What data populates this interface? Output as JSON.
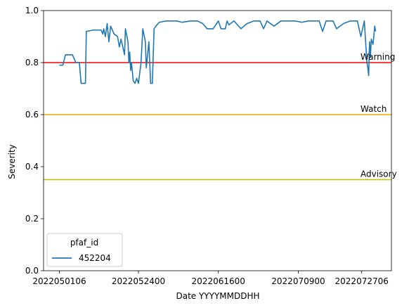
{
  "chart_data": {
    "type": "line",
    "title": "",
    "xlabel": "Date YYYYMMDDHH",
    "ylabel": "Severity",
    "ylim": [
      0,
      1
    ],
    "yticks": [
      "0.0",
      "0.2",
      "0.4",
      "0.6",
      "0.8",
      "1.0"
    ],
    "xticks": [
      "2022050106",
      "2022052400",
      "2022061600",
      "2022070900",
      "2022072706"
    ],
    "grid": false,
    "legend": {
      "title": "pfaf_id",
      "placement": "lower-left"
    },
    "thresholds": [
      {
        "label": "Warning",
        "value": 0.8,
        "color": "#ff0000"
      },
      {
        "label": "Watch",
        "value": 0.6,
        "color": "#ffa500"
      },
      {
        "label": "Advisory",
        "value": 0.35,
        "color": "#bfbf00"
      }
    ],
    "series": [
      {
        "name": "452204",
        "color": "#1f77b4",
        "points": [
          [
            "2022050106",
            0.79
          ],
          [
            "2022050206",
            0.79
          ],
          [
            "2022050300",
            0.83
          ],
          [
            "2022050500",
            0.83
          ],
          [
            "2022050600",
            0.8
          ],
          [
            "2022050700",
            0.8
          ],
          [
            "2022050712",
            0.72
          ],
          [
            "2022050818",
            0.72
          ],
          [
            "2022050900",
            0.92
          ],
          [
            "2022051100",
            0.925
          ],
          [
            "2022051306",
            0.925
          ],
          [
            "2022051318",
            0.91
          ],
          [
            "2022051400",
            0.93
          ],
          [
            "2022051412",
            0.9
          ],
          [
            "2022051500",
            0.95
          ],
          [
            "2022051512",
            0.88
          ],
          [
            "2022051600",
            0.94
          ],
          [
            "2022051700",
            0.91
          ],
          [
            "2022051800",
            0.9
          ],
          [
            "2022051812",
            0.86
          ],
          [
            "2022051900",
            0.89
          ],
          [
            "2022052000",
            0.83
          ],
          [
            "2022052006",
            0.93
          ],
          [
            "2022052100",
            0.88
          ],
          [
            "2022052106",
            0.8
          ],
          [
            "2022052112",
            0.84
          ],
          [
            "2022052118",
            0.77
          ],
          [
            "2022052200",
            0.8
          ],
          [
            "2022052212",
            0.73
          ],
          [
            "2022052300",
            0.72
          ],
          [
            "2022052312",
            0.74
          ],
          [
            "2022052400",
            0.72
          ],
          [
            "2022052418",
            0.8
          ],
          [
            "2022052506",
            0.93
          ],
          [
            "2022052600",
            0.88
          ],
          [
            "2022052606",
            0.78
          ],
          [
            "2022052700",
            0.88
          ],
          [
            "2022052712",
            0.72
          ],
          [
            "2022052800",
            0.72
          ],
          [
            "2022052812",
            0.93
          ],
          [
            "2022052900",
            0.94
          ],
          [
            "2022053000",
            0.955
          ],
          [
            "2022060100",
            0.96
          ],
          [
            "2022060400",
            0.96
          ],
          [
            "2022060512",
            0.955
          ],
          [
            "2022060800",
            0.96
          ],
          [
            "2022061000",
            0.96
          ],
          [
            "2022061112",
            0.95
          ],
          [
            "2022061218",
            0.93
          ],
          [
            "2022061412",
            0.93
          ],
          [
            "2022061512",
            0.95
          ],
          [
            "2022061600",
            0.96
          ],
          [
            "2022061618",
            0.93
          ],
          [
            "2022061800",
            0.93
          ],
          [
            "2022061812",
            0.96
          ],
          [
            "2022061900",
            0.945
          ],
          [
            "2022062012",
            0.96
          ],
          [
            "2022062212",
            0.93
          ],
          [
            "2022062406",
            0.95
          ],
          [
            "2022062606",
            0.96
          ],
          [
            "2022062800",
            0.96
          ],
          [
            "2022062900",
            0.93
          ],
          [
            "2022063000",
            0.96
          ],
          [
            "2022070200",
            0.94
          ],
          [
            "2022070400",
            0.96
          ],
          [
            "2022070800",
            0.96
          ],
          [
            "2022071000",
            0.955
          ],
          [
            "2022071200",
            0.96
          ],
          [
            "2022071500",
            0.96
          ],
          [
            "2022071600",
            0.92
          ],
          [
            "2022071700",
            0.96
          ],
          [
            "2022071900",
            0.96
          ],
          [
            "2022072000",
            0.93
          ],
          [
            "2022072200",
            0.95
          ],
          [
            "2022072400",
            0.96
          ],
          [
            "2022072600",
            0.96
          ],
          [
            "2022072700",
            0.9
          ],
          [
            "2022072800",
            0.96
          ],
          [
            "2022072818",
            0.8
          ],
          [
            "2022072900",
            0.78
          ],
          [
            "2022072906",
            0.75
          ],
          [
            "2022072912",
            0.88
          ],
          [
            "2022072918",
            0.82
          ],
          [
            "2022073000",
            0.89
          ],
          [
            "2022073012",
            0.87
          ],
          [
            "2022073100",
            0.94
          ],
          [
            "2022073106",
            0.92
          ]
        ]
      }
    ]
  }
}
